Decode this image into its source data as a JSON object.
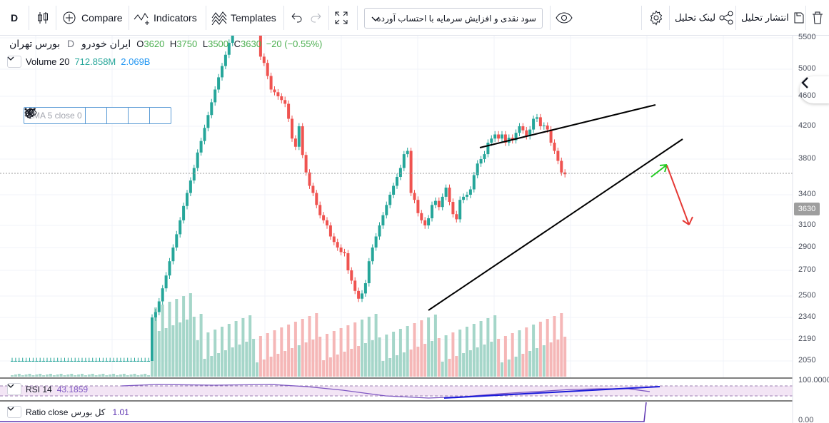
{
  "toolbar": {
    "interval": "D",
    "compare": "Compare",
    "indicators": "Indicators",
    "templates": "Templates",
    "symbol_select": "سود نقدی و افزایش سرمایه با احتساب آورده",
    "link_analysis": "لینک تحلیل",
    "publish_analysis": "انتشار تحلیل"
  },
  "legend": {
    "symbol": "ایران خودرو",
    "exchange": "بورس تهران",
    "interval": "D",
    "o_label": "O",
    "o": "3620",
    "h_label": "H",
    "h": "3750",
    "l_label": "L",
    "l": "3500",
    "c_label": "C",
    "c": "3630",
    "change": "−20 (−0.55%)",
    "volume_label": "Volume 20",
    "volume_value": "712.858M",
    "volume_ma": "2.069B",
    "ema": "EMA 5 close 0"
  },
  "rsi": {
    "label": "RSI 14",
    "value": "43.1859",
    "axis": "100.0000"
  },
  "ratio": {
    "label": "Ratio close",
    "name": "کل بورس",
    "value": "1.01",
    "axis": "0.00"
  },
  "price_axis": [
    "5500",
    "5000",
    "4600",
    "4200",
    "3800",
    "3400",
    "3100",
    "2900",
    "2700",
    "2500",
    "2340",
    "2190",
    "2050"
  ],
  "last_price": "3630",
  "colors": {
    "up": "#26a69a",
    "down": "#ef5350",
    "up_vol": "#a5d6c9",
    "down_vol": "#f5b7b7",
    "rsi": "#7e57c2"
  },
  "chart_data": {
    "type": "candlestick",
    "x_start_px_note": "",
    "candles": [
      [
        3430,
        3470,
        3420,
        3460
      ],
      [
        3470,
        3560,
        3460,
        3550
      ],
      [
        3650,
        3660,
        3630,
        3650
      ],
      [
        3760,
        3770,
        3740,
        3760
      ],
      [
        3900,
        4000,
        3880,
        3990
      ],
      [
        4150,
        4170,
        4140,
        4160
      ],
      [
        4320,
        4340,
        4310,
        4330
      ],
      [
        4480,
        4500,
        4470,
        4490
      ],
      [
        4700,
        4720,
        4690,
        4710
      ],
      [
        4850,
        4870,
        4840,
        4860
      ],
      [
        5000,
        5020,
        4990,
        5010
      ],
      [
        5150,
        5170,
        5140,
        5160
      ],
      [
        5300,
        5320,
        5290,
        5310
      ],
      [
        5450,
        5470,
        5440,
        5460
      ],
      [
        5600,
        5620,
        5590,
        5610
      ]
    ]
  }
}
